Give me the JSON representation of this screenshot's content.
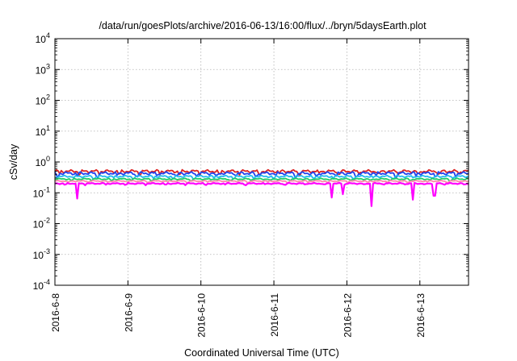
{
  "chart_data": {
    "type": "line",
    "title": "/data/run/goesPlots/archive/2016-06-13/16:00/flux/../bryn/5daysEarth.plot",
    "xlabel": "Coordinated Universal Time (UTC)",
    "ylabel": "cSv/day",
    "yscale": "log",
    "ylim": [
      0.0001,
      10000
    ],
    "y_ticks": [
      {
        "value": 0.0001,
        "base": "10",
        "exp": "-4"
      },
      {
        "value": 0.001,
        "base": "10",
        "exp": "-3"
      },
      {
        "value": 0.01,
        "base": "10",
        "exp": "-2"
      },
      {
        "value": 0.1,
        "base": "10",
        "exp": "-1"
      },
      {
        "value": 1,
        "base": "10",
        "exp": "0"
      },
      {
        "value": 10,
        "base": "10",
        "exp": "1"
      },
      {
        "value": 100,
        "base": "10",
        "exp": "2"
      },
      {
        "value": 1000,
        "base": "10",
        "exp": "3"
      },
      {
        "value": 10000,
        "base": "10",
        "exp": "4"
      }
    ],
    "xlim": [
      "2016-06-08",
      "2016-06-13T16:00"
    ],
    "x_ticks": [
      "2016-6-8",
      "2016-6-9",
      "2016-6-10",
      "2016-6-11",
      "2016-6-12",
      "2016-6-13"
    ],
    "grid": true,
    "series": [
      {
        "color": "#dd2222",
        "baseline": 0.5,
        "amplitude": 0.12,
        "dips": []
      },
      {
        "color": "#2244ee",
        "baseline": 0.43,
        "amplitude": 0.12,
        "dips": []
      },
      {
        "color": "#22bbee",
        "baseline": 0.34,
        "amplitude": 0.08,
        "dips": []
      },
      {
        "color": "#22cc66",
        "baseline": 0.28,
        "amplitude": 0.06,
        "dips": []
      },
      {
        "color": "#ff88aa",
        "baseline": 0.24,
        "amplitude": 0.05,
        "dips": []
      },
      {
        "color": "#ff00ff",
        "baseline": 0.2,
        "amplitude": 0.05,
        "dips": [
          {
            "t": 0.3,
            "v": 0.065
          },
          {
            "t": 3.8,
            "v": 0.07
          },
          {
            "t": 3.95,
            "v": 0.09
          },
          {
            "t": 4.33,
            "v": 0.037
          },
          {
            "t": 4.9,
            "v": 0.06
          },
          {
            "t": 5.2,
            "v": 0.08
          }
        ]
      }
    ]
  }
}
